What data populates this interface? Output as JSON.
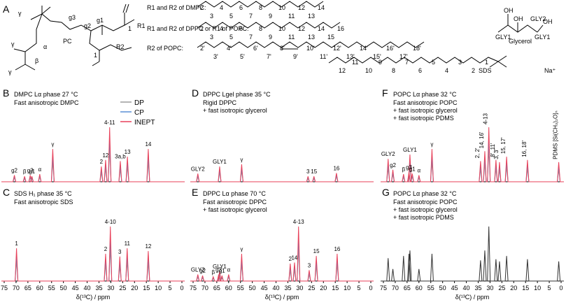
{
  "panel_letters": {
    "A": "A",
    "B": "B",
    "C": "C",
    "D": "D",
    "E": "E",
    "F": "F",
    "G": "G"
  },
  "structures": {
    "pc_label": "PC",
    "r1_dmpc": "R1 and R2 of DMPC:",
    "r1_dppc": "R1 and R2 of DPPC or R1 of POPC:",
    "r2_popc": "R2 of POPC:",
    "glycerol_label": "Glycerol",
    "sds_label": "SDS",
    "na_label": "Na⁺",
    "pc_atoms": [
      "γ",
      "γ",
      "γ",
      "α",
      "β",
      "g1",
      "g2",
      "g3",
      "1",
      "1",
      "R1",
      "R2"
    ],
    "glycerol_atoms": [
      "OH",
      "OH",
      "OH",
      "GLY1",
      "GLY2",
      "GLY1"
    ],
    "dmpc_numbers": [
      "2",
      "3",
      "4",
      "5",
      "6",
      "7",
      "8",
      "9",
      "10",
      "11",
      "12",
      "13",
      "14"
    ],
    "dppc_numbers": [
      "2",
      "3",
      "4",
      "5",
      "6",
      "7",
      "8",
      "9",
      "10",
      "11",
      "12",
      "13",
      "14",
      "15",
      "16"
    ],
    "popc_numbers": [
      "2'",
      "3'",
      "4'",
      "5'",
      "6'",
      "7'",
      "8'",
      "9'",
      "10'",
      "11'",
      "12'",
      "13'",
      "14'",
      "15'",
      "16'",
      "17'",
      "18'"
    ],
    "sds_numbers": [
      "12",
      "11",
      "10",
      "9",
      "8",
      "7",
      "6",
      "5",
      "4",
      "3",
      "2",
      "1"
    ]
  },
  "legend": [
    "DP",
    "CP",
    "INEPT"
  ],
  "colors": {
    "DP": "#9a9a9a",
    "CP": "#5b8fd6",
    "INEPT": "#e8415a",
    "gray": "#333333"
  },
  "axis_title": "δ(¹³C) / ppm",
  "chart_data": [
    {
      "type": "line",
      "panel": "B",
      "title": "DMPC Lα phase 27 °C",
      "subtitle": "Fast anisotropic DMPC",
      "xlim": [
        75,
        0
      ],
      "x_ticks": [
        75,
        70,
        65,
        60,
        55,
        50,
        45,
        40,
        35,
        30,
        25,
        20,
        15,
        10,
        5,
        0
      ],
      "peaks": [
        {
          "x": 70.7,
          "label": "g2"
        },
        {
          "x": 66.4,
          "label": "β"
        },
        {
          "x": 64.0,
          "label": "g3"
        },
        {
          "x": 63.3,
          "label": "g1"
        },
        {
          "x": 60.0,
          "label": "α"
        },
        {
          "x": 54.5,
          "label": "γ"
        },
        {
          "x": 34.0,
          "label": "2"
        },
        {
          "x": 32.2,
          "label": "12"
        },
        {
          "x": 30.5,
          "label": "4-11"
        },
        {
          "x": 26.0,
          "label": "3a,b"
        },
        {
          "x": 23.0,
          "label": "13"
        },
        {
          "x": 14.2,
          "label": "14"
        }
      ]
    },
    {
      "type": "line",
      "panel": "C",
      "title": "SDS H₁ phase 35 °C",
      "subtitle": "Fast anisotropic SDS",
      "xlim": [
        75,
        0
      ],
      "peaks": [
        {
          "x": 69.8,
          "label": "1"
        },
        {
          "x": 32.2,
          "label": "2"
        },
        {
          "x": 30.2,
          "label": "4-10"
        },
        {
          "x": 26.2,
          "label": "3"
        },
        {
          "x": 23.1,
          "label": "11"
        },
        {
          "x": 14.2,
          "label": "12"
        }
      ]
    },
    {
      "type": "line",
      "panel": "D",
      "title": "DPPC Lgel phase 35 °C",
      "subtitle": "Rigid DPPC + fast isotropic glycerol",
      "xlim": [
        75,
        0
      ],
      "peaks": [
        {
          "x": 73.0,
          "label": "GLY2"
        },
        {
          "x": 63.8,
          "label": "GLY1"
        },
        {
          "x": 54.5,
          "label": "γ"
        },
        {
          "x": 26.5,
          "label": "3"
        },
        {
          "x": 24.0,
          "label": "15"
        },
        {
          "x": 14.5,
          "label": "16"
        }
      ]
    },
    {
      "type": "line",
      "panel": "E",
      "title": "DPPC Lα phase 70 °C",
      "subtitle": "Fast anisotropic DPPC + fast isotropic glycerol",
      "xlim": [
        75,
        0
      ],
      "peaks": [
        {
          "x": 73.0,
          "label": "GLY2"
        },
        {
          "x": 71.0,
          "label": "g2"
        },
        {
          "x": 66.5,
          "label": "β"
        },
        {
          "x": 64.2,
          "label": "g3"
        },
        {
          "x": 62.8,
          "label": "g1"
        },
        {
          "x": 63.8,
          "label": "GLY1"
        },
        {
          "x": 60.0,
          "label": "α"
        },
        {
          "x": 54.5,
          "label": "γ"
        },
        {
          "x": 34.0,
          "label": "2"
        },
        {
          "x": 32.2,
          "label": "14"
        },
        {
          "x": 30.5,
          "label": "4-13"
        },
        {
          "x": 26.0,
          "label": "3"
        },
        {
          "x": 23.0,
          "label": "15"
        },
        {
          "x": 14.2,
          "label": "16"
        }
      ]
    },
    {
      "type": "line",
      "panel": "F",
      "title": "POPC Lα phase 32 °C",
      "subtitle": "Fast anisotropic POPC + fast isotropic glycerol + fast isotropic PDMS",
      "xlim": [
        75,
        0
      ],
      "peaks": [
        {
          "x": 73.0,
          "label": "GLY2"
        },
        {
          "x": 71.0,
          "label": "g2"
        },
        {
          "x": 66.5,
          "label": "β"
        },
        {
          "x": 64.2,
          "label": "g3"
        },
        {
          "x": 63.8,
          "label": "GLY1"
        },
        {
          "x": 62.8,
          "label": "g1"
        },
        {
          "x": 60.0,
          "label": "α"
        },
        {
          "x": 54.5,
          "label": "γ"
        },
        {
          "x": 34.0,
          "label": "2, 2'"
        },
        {
          "x": 32.2,
          "label": "14, 16'"
        },
        {
          "x": 30.5,
          "label": "4-13"
        },
        {
          "x": 27.5,
          "label": "8', 11'"
        },
        {
          "x": 26.0,
          "label": "3, 3'"
        },
        {
          "x": 23.0,
          "label": "15, 17'"
        },
        {
          "x": 14.2,
          "label": "16, 18'"
        },
        {
          "x": 1.0,
          "label": "PDMS [Si(CH₃)₂O]ₙ"
        }
      ]
    },
    {
      "type": "line",
      "panel": "G",
      "title": "POPC Lα phase 32 °C",
      "subtitle": "Fast anisotropic POPC + fast isotropic glycerol + fast isotropic PDMS",
      "xlim": [
        75,
        0
      ],
      "peaks": [
        {
          "x": 73.0
        },
        {
          "x": 71.0
        },
        {
          "x": 66.5
        },
        {
          "x": 64.2
        },
        {
          "x": 63.8
        },
        {
          "x": 60.0
        },
        {
          "x": 54.5
        },
        {
          "x": 34.0
        },
        {
          "x": 32.2
        },
        {
          "x": 30.5
        },
        {
          "x": 27.5
        },
        {
          "x": 26.0
        },
        {
          "x": 23.0
        },
        {
          "x": 14.2
        },
        {
          "x": 1.0
        }
      ]
    }
  ]
}
